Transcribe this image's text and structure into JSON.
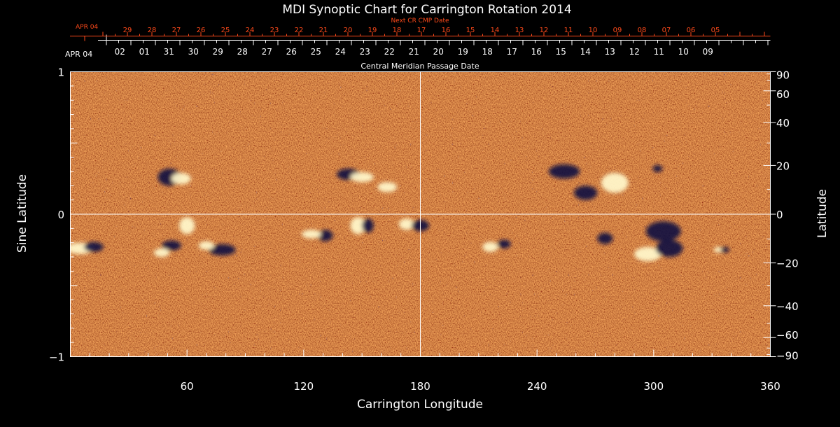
{
  "chart_data": {
    "type": "heatmap",
    "title": "MDI Synoptic Chart for Carrington Rotation 2014",
    "xlabel": "Carrington Longitude",
    "ylabel_left": "Sine Latitude",
    "ylabel_right": "Latitude",
    "xlim": [
      0,
      360
    ],
    "x_ticks": [
      60,
      120,
      180,
      240,
      300,
      360
    ],
    "x_tick_labels": [
      "60",
      "120",
      "180",
      "240",
      "300",
      "360"
    ],
    "left_ylim": [
      -1,
      1
    ],
    "left_y_ticks": [
      1,
      0,
      -1
    ],
    "left_y_tick_labels": [
      "1",
      "0",
      "−1"
    ],
    "right_y_ticks": [
      90,
      60,
      40,
      20,
      0,
      -20,
      -40,
      -60,
      -90
    ],
    "right_y_tick_labels": [
      "90",
      "60",
      "40",
      "20",
      "0",
      "−20",
      "−40",
      "−60",
      "−90"
    ],
    "crosshair": {
      "longitude": 180,
      "sine_latitude": 0
    },
    "cmp_axis": {
      "label": "Central Meridian Passage Date",
      "start_label": "APR 04",
      "day_labels": [
        "02",
        "01",
        "31",
        "30",
        "29",
        "28",
        "27",
        "26",
        "25",
        "24",
        "23",
        "22",
        "21",
        "20",
        "19",
        "18",
        "17",
        "16",
        "15",
        "14",
        "13",
        "12",
        "11",
        "10",
        "09"
      ]
    },
    "next_cr_axis": {
      "label": "Next CR CMP Date",
      "start_label": "APR 04",
      "day_labels": [
        "29",
        "28",
        "27",
        "26",
        "25",
        "24",
        "23",
        "22",
        "21",
        "20",
        "19",
        "18",
        "17",
        "16",
        "15",
        "14",
        "13",
        "12",
        "11",
        "10",
        "09",
        "08",
        "07",
        "06",
        "05"
      ]
    },
    "colormap": {
      "background": "#ff4a0a",
      "positive": "#fff6c8",
      "negative": "#0a0a40"
    },
    "active_regions": [
      {
        "lon": 5,
        "sinlat": -0.24,
        "w": 14,
        "h": 0.08,
        "polarity": "positive"
      },
      {
        "lon": 12,
        "sinlat": -0.23,
        "w": 10,
        "h": 0.07,
        "polarity": "negative"
      },
      {
        "lon": 51,
        "sinlat": 0.26,
        "w": 12,
        "h": 0.12,
        "polarity": "negative"
      },
      {
        "lon": 57,
        "sinlat": 0.25,
        "w": 10,
        "h": 0.08,
        "polarity": "positive"
      },
      {
        "lon": 60,
        "sinlat": -0.08,
        "w": 8,
        "h": 0.12,
        "polarity": "positive"
      },
      {
        "lon": 52,
        "sinlat": -0.22,
        "w": 10,
        "h": 0.07,
        "polarity": "negative"
      },
      {
        "lon": 47,
        "sinlat": -0.27,
        "w": 8,
        "h": 0.06,
        "polarity": "positive"
      },
      {
        "lon": 78,
        "sinlat": -0.25,
        "w": 14,
        "h": 0.08,
        "polarity": "negative"
      },
      {
        "lon": 70,
        "sinlat": -0.22,
        "w": 8,
        "h": 0.06,
        "polarity": "positive"
      },
      {
        "lon": 143,
        "sinlat": 0.28,
        "w": 12,
        "h": 0.08,
        "polarity": "negative"
      },
      {
        "lon": 150,
        "sinlat": 0.26,
        "w": 12,
        "h": 0.07,
        "polarity": "positive"
      },
      {
        "lon": 163,
        "sinlat": 0.19,
        "w": 10,
        "h": 0.07,
        "polarity": "positive"
      },
      {
        "lon": 148,
        "sinlat": -0.08,
        "w": 8,
        "h": 0.12,
        "polarity": "positive"
      },
      {
        "lon": 153,
        "sinlat": -0.08,
        "w": 6,
        "h": 0.1,
        "polarity": "negative"
      },
      {
        "lon": 131,
        "sinlat": -0.15,
        "w": 8,
        "h": 0.08,
        "polarity": "negative"
      },
      {
        "lon": 124,
        "sinlat": -0.14,
        "w": 10,
        "h": 0.06,
        "polarity": "positive"
      },
      {
        "lon": 173,
        "sinlat": -0.07,
        "w": 8,
        "h": 0.08,
        "polarity": "positive"
      },
      {
        "lon": 180,
        "sinlat": -0.08,
        "w": 9,
        "h": 0.08,
        "polarity": "negative"
      },
      {
        "lon": 216,
        "sinlat": -0.23,
        "w": 8,
        "h": 0.07,
        "polarity": "positive"
      },
      {
        "lon": 223,
        "sinlat": -0.21,
        "w": 7,
        "h": 0.06,
        "polarity": "negative"
      },
      {
        "lon": 254,
        "sinlat": 0.3,
        "w": 16,
        "h": 0.1,
        "polarity": "negative"
      },
      {
        "lon": 265,
        "sinlat": 0.15,
        "w": 12,
        "h": 0.1,
        "polarity": "negative"
      },
      {
        "lon": 280,
        "sinlat": 0.22,
        "w": 14,
        "h": 0.14,
        "polarity": "positive"
      },
      {
        "lon": 302,
        "sinlat": 0.32,
        "w": 5,
        "h": 0.05,
        "polarity": "negative"
      },
      {
        "lon": 275,
        "sinlat": -0.17,
        "w": 8,
        "h": 0.08,
        "polarity": "negative"
      },
      {
        "lon": 297,
        "sinlat": -0.28,
        "w": 14,
        "h": 0.1,
        "polarity": "positive"
      },
      {
        "lon": 308,
        "sinlat": -0.24,
        "w": 14,
        "h": 0.12,
        "polarity": "negative"
      },
      {
        "lon": 305,
        "sinlat": -0.12,
        "w": 18,
        "h": 0.14,
        "polarity": "negative"
      },
      {
        "lon": 336,
        "sinlat": -0.25,
        "w": 6,
        "h": 0.04,
        "polarity": "negative"
      },
      {
        "lon": 333,
        "sinlat": -0.25,
        "w": 4,
        "h": 0.04,
        "polarity": "positive"
      }
    ]
  }
}
